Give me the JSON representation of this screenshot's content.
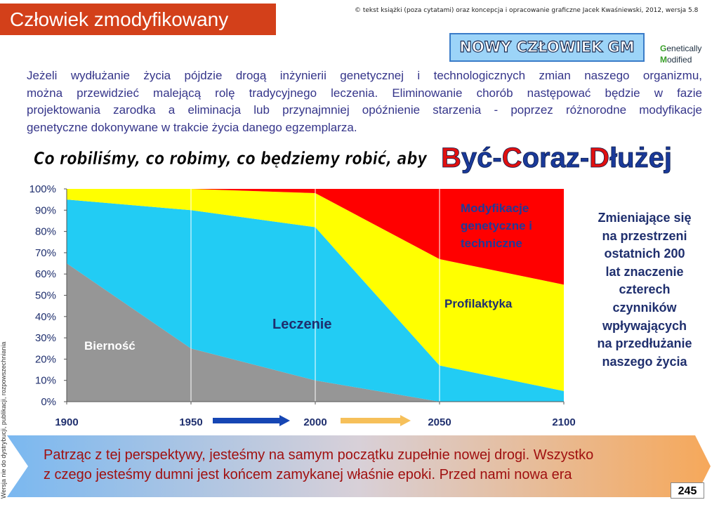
{
  "header": {
    "title": "Człowiek zmodyfikowany",
    "copyright": "© tekst książki (poza cytatami) oraz koncepcja i opracowanie graficzne Jacek Kwaśniewski, 2012,  wersja 5.8",
    "badge": "NOWY CZŁOWIEK GM",
    "gm_lines": [
      [
        "G",
        "enetically"
      ],
      [
        "M",
        "odified"
      ]
    ]
  },
  "intro_lines": [
    "Jeżeli wydłużanie życia pójdzie drogą inżynierii genetycznej i technologicznych zmian naszego organizmu,",
    "można przewidzieć malejącą rolę tradycyjnego leczenia. Eliminowanie chorób następować będzie w fazie",
    "projektowania zarodka a eliminacja lub przynajmniej opóźnienie starzenia - poprzez różnorodne modyfikacje",
    "genetyczne dokonywane w trakcie życia danego egzemplarza."
  ],
  "headline": {
    "lead": "Co robiliśmy, co robimy, co będziemy robić, aby",
    "parts": [
      "B",
      "yć-",
      "C",
      "oraz-",
      "D",
      "łużej"
    ]
  },
  "chart_data": {
    "type": "stacked-area",
    "x": [
      1900,
      1950,
      2000,
      2050,
      2100
    ],
    "xlim": [
      1900,
      2100
    ],
    "xticks": [
      1900,
      1950,
      2000,
      2050,
      2100
    ],
    "ylim": [
      0,
      100
    ],
    "yticks": [
      {
        "value": 0,
        "label": "0%"
      },
      {
        "value": 10,
        "label": "10%"
      },
      {
        "value": 20,
        "label": "20%"
      },
      {
        "value": 30,
        "label": "30%"
      },
      {
        "value": 40,
        "label": "40%"
      },
      {
        "value": 50,
        "label": "50%"
      },
      {
        "value": 60,
        "label": "60%"
      },
      {
        "value": 70,
        "label": "70%"
      },
      {
        "value": 80,
        "label": "80%"
      },
      {
        "value": 90,
        "label": "90%"
      },
      {
        "value": 100,
        "label": "100%"
      }
    ],
    "grid": "x",
    "series": [
      {
        "name": "Bierność",
        "color": "#969696",
        "values": [
          65,
          25,
          10,
          0,
          0
        ]
      },
      {
        "name": "Leczenie",
        "color": "#22ccf4",
        "values": [
          30,
          65,
          72,
          17,
          5
        ]
      },
      {
        "name": "Profilaktyka",
        "color": "#ffff00",
        "values": [
          5,
          10,
          16,
          50,
          50
        ]
      },
      {
        "name": "Modyfikacje genetyczne i techniczne",
        "color": "#ff0000",
        "values": [
          0,
          0,
          2,
          33,
          45
        ]
      }
    ]
  },
  "side_lines": [
    "Zmieniające się",
    "na przestrzeni",
    "ostatnich 200",
    "lat znaczenie",
    "czterech",
    "czynników",
    "wpływających",
    "na przedłużanie",
    "naszego życia"
  ],
  "banner_lines": [
    "Patrząc z tej perspektywy, jesteśmy na samym początku zupełnie nowej drogi. Wszystko",
    "z czego jesteśmy dumni jest końcem zamykanej  właśnie epoki. Przed nami nowa era"
  ],
  "page_number": "245",
  "side_note": "Wersja nie do dystrybucji, publikacji, rozpowszechniania"
}
